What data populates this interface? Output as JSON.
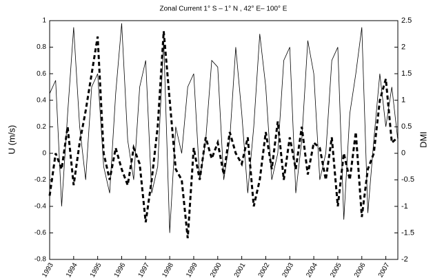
{
  "chart_data": {
    "type": "line",
    "title": "Zonal Current  1° S – 1° N , 42° E– 100° E",
    "ylabel": "U (m/s)",
    "y2label": "DMI",
    "x": [
      1993,
      1993.25,
      1993.5,
      1993.75,
      1994,
      1994.25,
      1994.5,
      1994.75,
      1995,
      1995.25,
      1995.5,
      1995.75,
      1996,
      1996.25,
      1996.5,
      1996.75,
      1997,
      1997.25,
      1997.5,
      1997.75,
      1998,
      1998.25,
      1998.5,
      1998.75,
      1999,
      1999.25,
      1999.5,
      1999.75,
      2000,
      2000.25,
      2000.5,
      2000.75,
      2001,
      2001.25,
      2001.5,
      2001.75,
      2002,
      2002.25,
      2002.5,
      2002.75,
      2003,
      2003.25,
      2003.5,
      2003.75,
      2004,
      2004.25,
      2004.5,
      2004.75,
      2005,
      2005.25,
      2005.5,
      2005.75,
      2006,
      2006.25,
      2006.5,
      2006.75,
      2007,
      2007.25,
      2007.5
    ],
    "series": [
      {
        "color": "#000000",
        "dash": false,
        "axis": "y",
        "values": [
          0.45,
          0.55,
          -0.4,
          0.3,
          0.95,
          0.2,
          -0.2,
          0.5,
          0.6,
          -0.1,
          -0.3,
          0.45,
          0.98,
          0.1,
          -0.2,
          0.5,
          0.7,
          -0.3,
          -0.1,
          0.85,
          -0.6,
          0.2,
          0.0,
          0.5,
          0.6,
          -0.2,
          0.1,
          0.7,
          0.65,
          -0.2,
          0.1,
          0.8,
          0.3,
          -0.3,
          0.2,
          0.9,
          0.5,
          -0.2,
          0.0,
          0.7,
          0.8,
          -0.3,
          0.1,
          0.85,
          0.6,
          -0.2,
          0.0,
          0.7,
          0.8,
          -0.5,
          0.3,
          0.6,
          0.95,
          -0.45,
          0.1,
          0.6,
          0.2,
          0.5,
          0.1
        ]
      },
      {
        "color": "#000000",
        "dash": true,
        "axis": "y2",
        "values": [
          -0.8,
          0.0,
          -0.3,
          0.5,
          -0.6,
          0.2,
          0.8,
          1.5,
          2.2,
          0.0,
          -0.5,
          0.1,
          -0.3,
          -0.6,
          0.1,
          -0.2,
          -1.3,
          -0.5,
          0.5,
          2.3,
          1.0,
          -0.3,
          -0.5,
          -1.6,
          0.1,
          -0.5,
          0.3,
          -0.1,
          0.2,
          -0.4,
          0.4,
          0.0,
          -0.2,
          0.3,
          -1.0,
          -0.5,
          0.4,
          -0.3,
          0.6,
          -0.5,
          0.3,
          -0.3,
          0.5,
          -0.4,
          0.2,
          0.1,
          -0.5,
          0.3,
          -1.0,
          0.0,
          -0.5,
          0.4,
          -1.2,
          -0.3,
          0.0,
          1.0,
          1.4,
          0.2,
          0.3
        ]
      }
    ],
    "xlim": [
      1993,
      2007.5
    ],
    "xticks": [
      1993,
      1994,
      1995,
      1996,
      1997,
      1998,
      1999,
      2000,
      2001,
      2002,
      2003,
      2004,
      2005,
      2006,
      2007
    ],
    "ylim": [
      -0.8,
      1
    ],
    "yticks": [
      -0.8,
      -0.6,
      -0.4,
      -0.2,
      0,
      0.2,
      0.4,
      0.6,
      0.8,
      1
    ],
    "y2lim": [
      -2,
      2.5
    ],
    "y2ticks": [
      -2,
      -1.5,
      -1,
      -0.5,
      0,
      0.5,
      1,
      1.5,
      2,
      2.5
    ]
  }
}
